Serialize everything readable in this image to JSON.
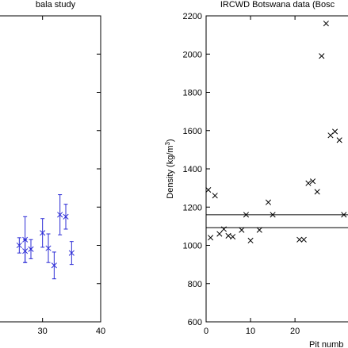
{
  "chart_data": [
    {
      "type": "scatter",
      "title": "bala study",
      "xlabel": "",
      "ylabel": "",
      "xlim": [
        22,
        40
      ],
      "ylim": [
        600,
        2200
      ],
      "x_ticks": [
        30,
        40
      ],
      "x_tick_labels": [
        "30",
        "40"
      ],
      "y_ticks": [
        800,
        1000,
        1200,
        1400,
        1600,
        1800,
        2000
      ],
      "show_y_tick_labels": false,
      "grid": false,
      "marker": "x",
      "color": "#2b2bd6",
      "series": [
        {
          "points": [
            {
              "x": 26,
              "y": 1000,
              "err": 40
            },
            {
              "x": 27,
              "y": 1030,
              "err": 120
            },
            {
              "x": 27,
              "y": 970,
              "err": 60
            },
            {
              "x": 28,
              "y": 980,
              "err": 50
            },
            {
              "x": 30,
              "y": 1065,
              "err": 75
            },
            {
              "x": 31,
              "y": 985,
              "err": 75
            },
            {
              "x": 32,
              "y": 895,
              "err": 70
            },
            {
              "x": 33,
              "y": 1160,
              "err": 105
            },
            {
              "x": 34,
              "y": 1150,
              "err": 65
            },
            {
              "x": 35,
              "y": 960,
              "err": 60
            }
          ]
        }
      ]
    },
    {
      "type": "scatter",
      "title": "IRCWD Botswana data (Bosc",
      "xlabel": "Pit numb",
      "ylabel_main": "Density (kg/m",
      "ylabel_sup": "3",
      "ylabel_end": ")",
      "xlim": [
        0,
        33
      ],
      "ylim": [
        600,
        2200
      ],
      "x_ticks": [
        0,
        10,
        20
      ],
      "x_tick_labels": [
        "0",
        "10",
        "20"
      ],
      "y_ticks": [
        600,
        800,
        1000,
        1200,
        1400,
        1600,
        1800,
        2000,
        2200
      ],
      "y_tick_labels": [
        "600",
        "800",
        "1000",
        "1200",
        "1400",
        "1600",
        "1800",
        "2000",
        "2200"
      ],
      "grid": false,
      "marker": "x",
      "color": "#000000",
      "hlines": [
        1160,
        1092
      ],
      "series": [
        {
          "points": [
            {
              "x": 0.5,
              "y": 1290
            },
            {
              "x": 1,
              "y": 1040
            },
            {
              "x": 2,
              "y": 1260
            },
            {
              "x": 3,
              "y": 1060
            },
            {
              "x": 4,
              "y": 1085
            },
            {
              "x": 5,
              "y": 1050
            },
            {
              "x": 6,
              "y": 1045
            },
            {
              "x": 8,
              "y": 1080
            },
            {
              "x": 9,
              "y": 1160
            },
            {
              "x": 10,
              "y": 1025
            },
            {
              "x": 12,
              "y": 1080
            },
            {
              "x": 14,
              "y": 1225
            },
            {
              "x": 15,
              "y": 1160
            },
            {
              "x": 21,
              "y": 1030
            },
            {
              "x": 22,
              "y": 1030
            },
            {
              "x": 23,
              "y": 1325
            },
            {
              "x": 24,
              "y": 1335
            },
            {
              "x": 25,
              "y": 1280
            },
            {
              "x": 26,
              "y": 1990
            },
            {
              "x": 27,
              "y": 2160
            },
            {
              "x": 28,
              "y": 1575
            },
            {
              "x": 29,
              "y": 1595
            },
            {
              "x": 30,
              "y": 1550
            },
            {
              "x": 31,
              "y": 1160
            }
          ]
        }
      ]
    }
  ]
}
